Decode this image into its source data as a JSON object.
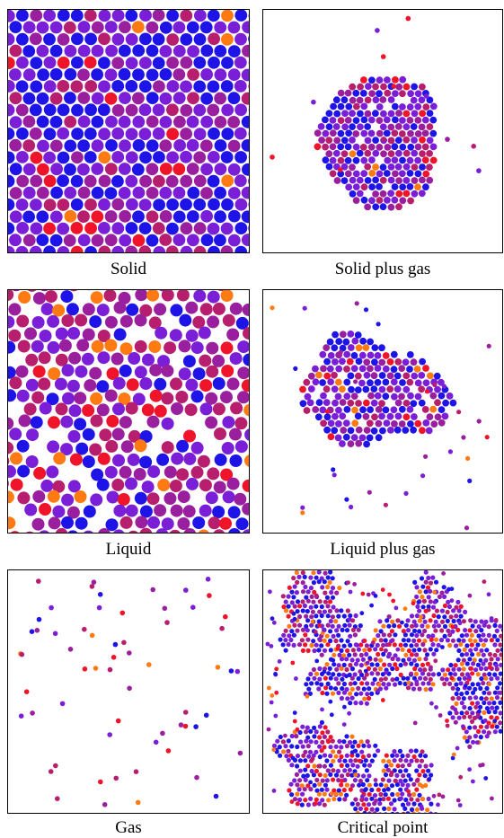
{
  "panels": [
    {
      "id": "solid",
      "caption": "Solid",
      "phase": "solid"
    },
    {
      "id": "solid-gas",
      "caption": "Solid plus gas",
      "phase": "solid-gas"
    },
    {
      "id": "liquid",
      "caption": "Liquid",
      "phase": "liquid"
    },
    {
      "id": "liquid-gas",
      "caption": "Liquid plus gas",
      "phase": "liquid-gas"
    },
    {
      "id": "gas",
      "caption": "Gas",
      "phase": "gas"
    },
    {
      "id": "critical",
      "caption": "Critical point",
      "phase": "critical"
    }
  ],
  "colors": {
    "background": "#ffffff",
    "frame": "#000000",
    "particle_blue": "#1f14e8",
    "particle_violet": "#7a1ed8",
    "particle_purple": "#9a1f9f",
    "particle_magenta": "#b81e6e",
    "particle_red": "#f0142a",
    "particle_orange": "#ff7a12"
  }
}
